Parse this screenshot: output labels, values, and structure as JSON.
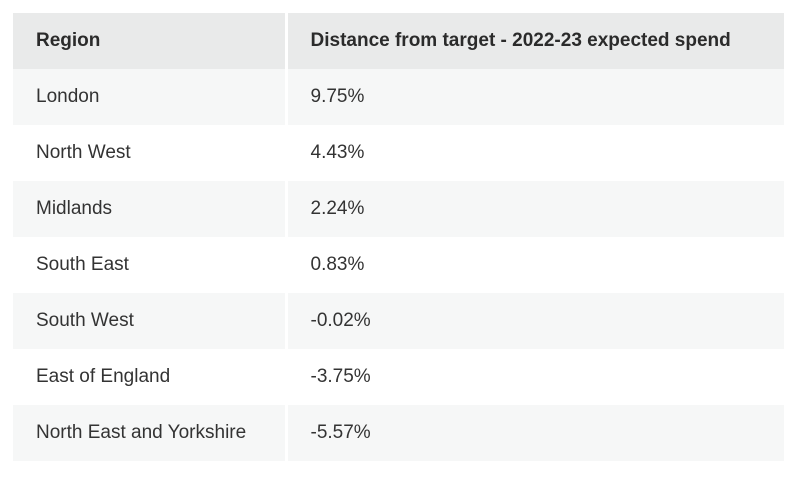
{
  "table": {
    "headers": [
      "Region",
      "Distance from target - 2022-23 expected spend"
    ],
    "rows": [
      {
        "region": "London",
        "value": "9.75%"
      },
      {
        "region": "North West",
        "value": "4.43%"
      },
      {
        "region": "Midlands",
        "value": "2.24%"
      },
      {
        "region": "South East",
        "value": "0.83%"
      },
      {
        "region": "South West",
        "value": "-0.02%"
      },
      {
        "region": "East of England",
        "value": "-3.75%"
      },
      {
        "region": "North East and Yorkshire",
        "value": "-5.57%"
      }
    ]
  }
}
